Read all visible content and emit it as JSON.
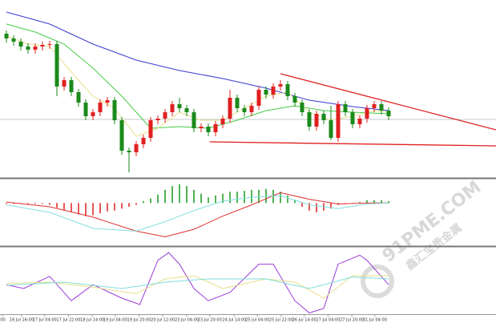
{
  "chart_data": {
    "type": "candlestick",
    "xlim": [
      -0.89,
      67.89
    ],
    "ylim": [
      -2,
      220
    ],
    "up_color": "#e02020",
    "down_color": "#1a8a1a",
    "open": [
      178,
      172,
      168,
      162,
      158,
      162,
      164,
      165,
      112,
      120,
      105,
      92,
      75,
      80,
      92,
      95,
      70,
      32,
      30,
      40,
      48,
      70,
      72,
      80,
      90,
      85,
      80,
      60,
      62,
      55,
      65,
      72,
      98,
      85,
      80,
      88,
      108,
      102,
      112,
      115,
      100,
      92,
      80,
      62,
      78,
      70,
      48,
      90,
      80,
      65,
      72,
      85,
      90,
      82
    ],
    "high": [
      182,
      176,
      172,
      166,
      166,
      168,
      169,
      169,
      124,
      124,
      109,
      96,
      84,
      96,
      99,
      99,
      74,
      36,
      44,
      52,
      74,
      76,
      84,
      94,
      98,
      89,
      84,
      66,
      66,
      69,
      76,
      108,
      102,
      89,
      92,
      112,
      112,
      116,
      120,
      119,
      104,
      96,
      84,
      82,
      82,
      88,
      94,
      94,
      84,
      76,
      89,
      94,
      94,
      86
    ],
    "low": [
      167,
      163,
      157,
      153,
      153,
      157,
      159,
      100,
      107,
      100,
      87,
      70,
      70,
      75,
      87,
      65,
      27,
      5,
      25,
      35,
      43,
      65,
      67,
      75,
      80,
      75,
      55,
      55,
      50,
      50,
      60,
      67,
      80,
      75,
      75,
      83,
      97,
      97,
      107,
      95,
      87,
      75,
      57,
      57,
      65,
      45,
      43,
      75,
      60,
      60,
      67,
      80,
      77,
      70
    ],
    "close": [
      172,
      168,
      162,
      158,
      162,
      164,
      165,
      112,
      120,
      105,
      92,
      75,
      80,
      92,
      95,
      70,
      32,
      30,
      40,
      48,
      70,
      72,
      80,
      90,
      85,
      80,
      60,
      62,
      55,
      65,
      72,
      98,
      85,
      80,
      88,
      108,
      102,
      112,
      115,
      100,
      92,
      80,
      62,
      78,
      70,
      48,
      90,
      80,
      65,
      72,
      85,
      90,
      82,
      75
    ],
    "lines": [
      {
        "color": "#3a3ad0",
        "x": [
          0,
          6,
          12,
          18,
          24,
          30,
          36,
          42,
          48,
          53
        ],
        "values": [
          205,
          190,
          165,
          145,
          132,
          122,
          110,
          95,
          87,
          82
        ]
      },
      {
        "color": "#44cc44",
        "x": [
          0,
          4,
          8,
          12,
          16,
          20,
          24,
          28,
          32,
          36,
          40,
          44,
          48,
          53
        ],
        "values": [
          190,
          180,
          165,
          135,
          100,
          60,
          62,
          60,
          70,
          82,
          88,
          82,
          80,
          78
        ]
      },
      {
        "color": "#e6e08a",
        "x": [
          0,
          3,
          6,
          9,
          12,
          15,
          18,
          21,
          24,
          27,
          30,
          33,
          36,
          39,
          42,
          45,
          48,
          51,
          53
        ],
        "values": [
          175,
          165,
          162,
          130,
          100,
          85,
          50,
          60,
          80,
          70,
          70,
          85,
          100,
          105,
          80,
          70,
          75,
          82,
          80
        ]
      }
    ],
    "trendlines": {
      "color": "#e02020",
      "lines": [
        {
          "x": [
            38,
            67.89
          ],
          "values": [
            128,
            58
          ]
        },
        {
          "x": [
            28.2,
            67.89
          ],
          "values": [
            43,
            38
          ]
        }
      ]
    },
    "price_line": {
      "color": "#c8c8c8",
      "value": 71
    },
    "macd": {
      "ylim": [
        -45,
        25
      ],
      "pos_color": "#1a9a1a",
      "neg_color": "#e02020",
      "values": [
        -1,
        -1,
        -1,
        -1,
        -1,
        -1,
        -2,
        -5,
        -8,
        -10,
        -12,
        -14,
        -13,
        -11,
        -9,
        -8,
        -6,
        -4,
        -2,
        2,
        5,
        9,
        14,
        18,
        20,
        18,
        14,
        10,
        6,
        8,
        10,
        12,
        12,
        13,
        14,
        14,
        15,
        14,
        12,
        8,
        3,
        -4,
        -8,
        -10,
        -8,
        -6,
        -2,
        -1,
        0,
        1,
        3,
        3,
        3,
        2
      ],
      "lines": [
        {
          "color": "#e03030",
          "x": [
            0,
            6,
            12,
            18,
            22,
            26,
            30,
            34,
            38,
            42,
            46,
            50,
            53
          ],
          "values": [
            1,
            -4,
            -15,
            -30,
            -36,
            -28,
            -14,
            -2,
            11,
            4,
            -1,
            0,
            0
          ]
        },
        {
          "color": "#80dede",
          "x": [
            0,
            6,
            12,
            18,
            22,
            26,
            30,
            34,
            38,
            42,
            46,
            50,
            53
          ],
          "values": [
            -2,
            -10,
            -27,
            -30,
            -20,
            -8,
            2,
            6,
            8,
            -2,
            -6,
            -1,
            0
          ]
        }
      ]
    },
    "stochastic": {
      "ylim": [
        0,
        100
      ],
      "lines": [
        {
          "color": "#9a3ad8",
          "x": [
            0,
            2.4,
            6,
            9,
            12,
            16,
            18.5,
            21,
            22.5,
            24,
            26,
            28,
            31,
            35,
            37,
            40,
            42,
            44,
            46,
            49,
            50,
            53
          ],
          "values": [
            46,
            40,
            59,
            21,
            46,
            25,
            15,
            84,
            96,
            78,
            40,
            21,
            34,
            78,
            78,
            21,
            2,
            9,
            78,
            92,
            84,
            46
          ]
        },
        {
          "color": "#e6e08a",
          "x": [
            0,
            6,
            12,
            18,
            22,
            26,
            30,
            36,
            40,
            44,
            48,
            53
          ],
          "values": [
            48,
            50,
            42,
            32,
            55,
            60,
            40,
            55,
            50,
            25,
            60,
            60
          ]
        },
        {
          "color": "#80dede",
          "x": [
            0,
            8,
            16,
            22,
            28,
            36,
            42,
            48,
            53
          ],
          "values": [
            45,
            50,
            40,
            50,
            55,
            55,
            40,
            58,
            55
          ]
        }
      ]
    },
    "xticks": [
      {
        "value": -0.5,
        "label": "00"
      },
      {
        "value": 2.1,
        "label": "16 Jul 16:00"
      },
      {
        "value": 5.3,
        "label": "17 Jul 04:00"
      },
      {
        "value": 8.6,
        "label": "17 Jul 22:00"
      },
      {
        "value": 11.9,
        "label": "18 Jul 14:00"
      },
      {
        "value": 15.1,
        "label": "19 Jul 04:00"
      },
      {
        "value": 18.4,
        "label": "19 Jul 20:00"
      },
      {
        "value": 21.7,
        "label": "20 Jul 12:00"
      },
      {
        "value": 25,
        "label": "23 Jul 04:00"
      },
      {
        "value": 28.2,
        "label": "23 Jul 20:00"
      },
      {
        "value": 31.6,
        "label": "24 Jul 14:00"
      },
      {
        "value": 34.8,
        "label": "25 Jul 04:00"
      },
      {
        "value": 38.1,
        "label": "25 Jul 22:00"
      },
      {
        "value": 41.3,
        "label": "26 Jul 14:00"
      },
      {
        "value": 44.6,
        "label": "27 Jul 04:00"
      },
      {
        "value": 47.9,
        "label": "27 Jul 20:00"
      },
      {
        "value": 51.1,
        "label": "31 Jul 04:00"
      }
    ],
    "watermark": [
      "91PME.COM",
      "鑫汇宝贵金属"
    ]
  }
}
